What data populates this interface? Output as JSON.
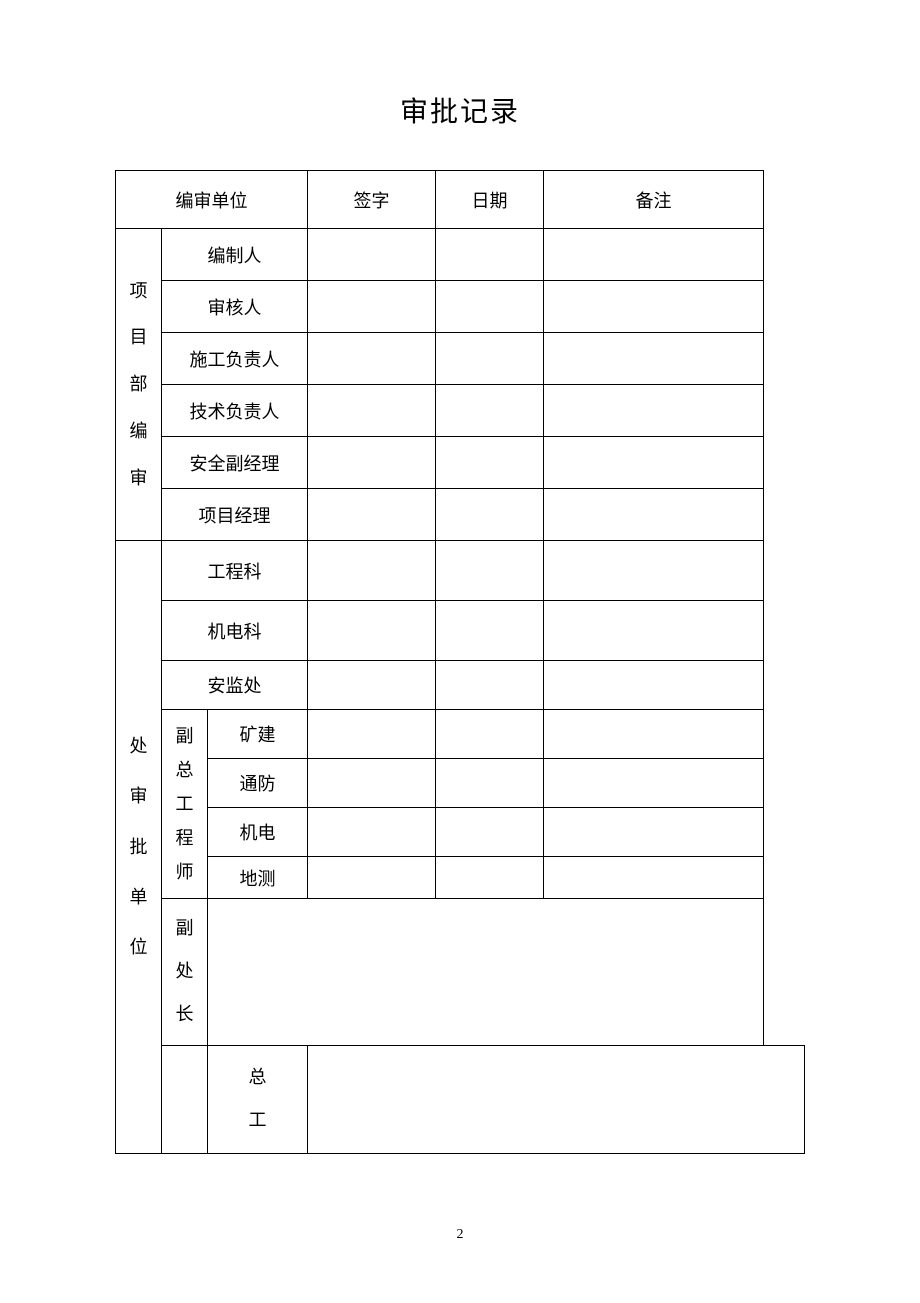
{
  "title": "审批记录",
  "pageNumber": "2",
  "headers": {
    "unit": "编审单位",
    "signature": "签字",
    "date": "日期",
    "remark": "备注"
  },
  "groupA": {
    "label": "项目部编审",
    "rows": [
      "编制人",
      "审核人",
      "施工负责人",
      "技术负责人",
      "安全副经理",
      "项目经理"
    ]
  },
  "groupB": {
    "label": "处审批单位",
    "rowsTop": [
      "工程科",
      "机电科",
      "安监处"
    ],
    "subGroup": {
      "label": "副总工程师",
      "rows": [
        "矿建",
        "通防",
        "机电",
        "地测"
      ]
    },
    "tail": [
      "副处长",
      "总工"
    ]
  },
  "style": {
    "titleFontSize": 28,
    "cellFontSize": 18,
    "borderColor": "#000000",
    "background": "#ffffff"
  }
}
